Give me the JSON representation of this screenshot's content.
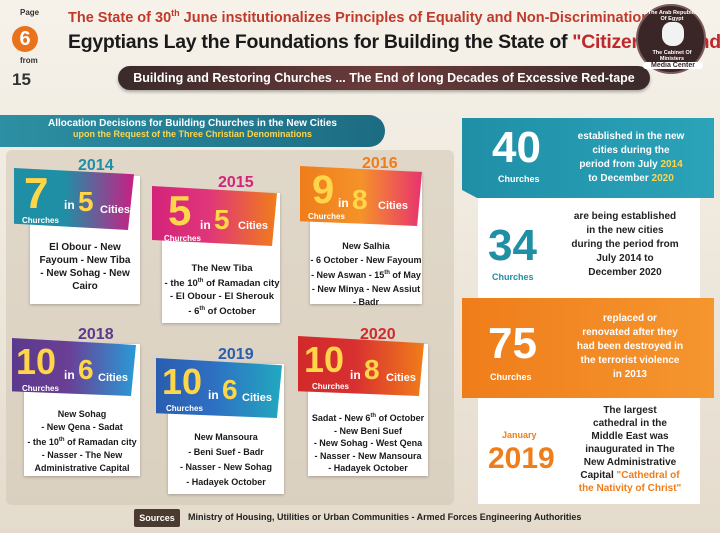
{
  "header": {
    "page_label": "Page",
    "page_number": "6",
    "from_label": "from",
    "page_total": "15",
    "subtitle_pre": "The State of 30",
    "subtitle_sup": "th",
    "subtitle_post": " June institutionalizes Principles of Equality and Non-Discrimination",
    "title_main": "Egyptians Lay the Foundations for Building the State of ",
    "title_highlight": "\"Citizenship and National Unity\"",
    "banner": "Building and Restoring Churches ... The End of long Decades of Excessive Red-tape"
  },
  "seal": {
    "top_text": "The Arab Republic Of Egypt",
    "middle_text": "The Cabinet Of Ministers",
    "bottom_text": "Media Center"
  },
  "allocation": {
    "title_line1": "Allocation Decisions for Building Churches in the New Cities",
    "title_line2": "upon the Request of the Three Christian Denominations"
  },
  "cards": [
    {
      "year": "2014",
      "churches": "7",
      "churches_label": "Churches",
      "in": "in",
      "cities": "5",
      "cities_label": "Cities",
      "lines": [
        "El Obour - New",
        "Fayoum - New Tiba",
        "- New Sohag - New",
        "Cairo"
      ]
    },
    {
      "year": "2015",
      "churches": "5",
      "churches_label": "Churches",
      "in": "in",
      "cities": "5",
      "cities_label": "Cities",
      "lines": [
        "The New Tiba",
        "- the 10th of Ramadan city",
        "- El Obour - El Sherouk",
        "- 6th of October"
      ]
    },
    {
      "year": "2016",
      "churches": "9",
      "churches_label": "Churches",
      "in": "in",
      "cities": "8",
      "cities_label": "Cities",
      "lines": [
        "New Salhia",
        "- 6 October - New Fayoum",
        "- New Aswan - 15th of May",
        "- New Minya - New Assiut",
        "- Badr"
      ]
    },
    {
      "year": "2018",
      "churches": "10",
      "churches_label": "Churches",
      "in": "in",
      "cities": "6",
      "cities_label": "Cities",
      "lines": [
        "New Sohag",
        "- New Qena - Sadat",
        "- the 10th of Ramadan city",
        "- Nasser - The New",
        "Administrative Capital"
      ]
    },
    {
      "year": "2019",
      "churches": "10",
      "churches_label": "Churches",
      "in": "in",
      "cities": "6",
      "cities_label": "Cities",
      "lines": [
        "New Mansoura",
        "- Beni Suef - Badr",
        "- Nasser - New Sohag",
        "- Hadayek October"
      ]
    },
    {
      "year": "2020",
      "churches": "10",
      "churches_label": "Churches",
      "in": "in",
      "cities": "8",
      "cities_label": "Cities",
      "lines": [
        "Sadat - New 6th of October",
        "- New Beni Suef",
        "- New Sohag - West Qena",
        "- Nasser - New Mansoura",
        "- Hadayek October"
      ]
    }
  ],
  "stats": [
    {
      "number": "40",
      "label": "Churches",
      "text": [
        "established in the new",
        "cities during the",
        "period from July 2014",
        "to December 2020"
      ]
    },
    {
      "number": "34",
      "label": "Churches",
      "text": [
        "are being established",
        "in the new cities",
        "during the period from",
        "July 2014 to",
        "December 2020"
      ]
    },
    {
      "number": "75",
      "label": "Churches",
      "text": [
        "replaced or",
        "renovated after they",
        "had been destroyed in",
        "the terrorist violence",
        "in 2013"
      ]
    },
    {
      "month": "January",
      "number": "2019",
      "text": [
        "The largest",
        "cathedral in the",
        "Middle East was",
        "inaugurated in The",
        "New Administrative",
        "Capital"
      ],
      "highlight": "\"Cathedral of",
      "highlight2": "the Nativity of Christ\""
    }
  ],
  "footer": {
    "sources_label": "Sources",
    "sources_text": "Ministry of Housing, Utilities or Urban Communities - Armed Forces Engineering Authorities"
  },
  "colors": {
    "teal": "#1f8fa6",
    "magenta": "#d4237a",
    "orange": "#ef7d1a",
    "purple": "#5a3a8c",
    "blue": "#2a5db0",
    "red": "#d22a2a",
    "yellow": "#ffd54a"
  }
}
